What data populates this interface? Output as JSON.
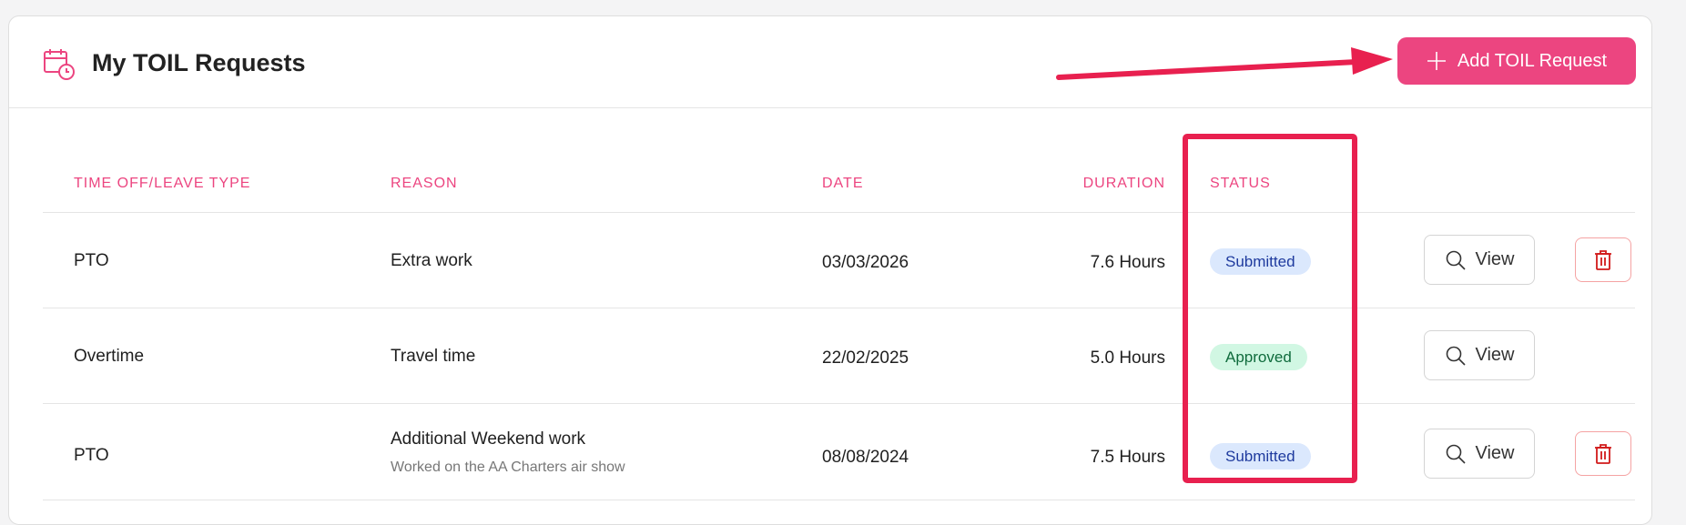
{
  "header": {
    "title": "My TOIL Requests",
    "icon": "calendar-clock-icon",
    "add_button": "Add TOIL Request",
    "accent": "#ec4580"
  },
  "table": {
    "columns": [
      "TIME OFF/LEAVE TYPE",
      "REASON",
      "DATE",
      "DURATION",
      "STATUS"
    ],
    "rows": [
      {
        "type": "PTO",
        "reason": "Extra work",
        "note": "",
        "date": "03/03/2026",
        "duration": "7.6 Hours",
        "status": "Submitted",
        "view": "View",
        "deletable": true
      },
      {
        "type": "Overtime",
        "reason": "Travel time",
        "note": "",
        "date": "22/02/2025",
        "duration": "5.0 Hours",
        "status": "Approved",
        "view": "View",
        "deletable": false
      },
      {
        "type": "PTO",
        "reason": "Additional Weekend work",
        "note": "Worked on the AA Charters air show",
        "date": "08/08/2024",
        "duration": "7.5 Hours",
        "status": "Submitted",
        "view": "View",
        "deletable": true
      }
    ]
  },
  "annotation_color": "#e8204f"
}
